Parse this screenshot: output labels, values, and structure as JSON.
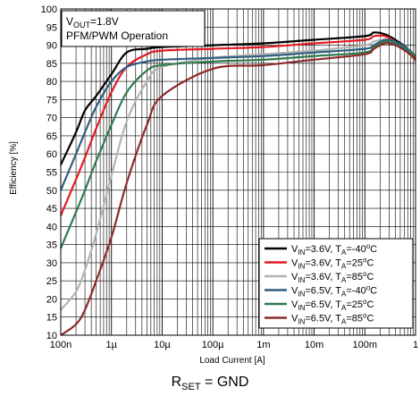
{
  "chart_data": {
    "type": "line",
    "xlabel": "Load Current [A]",
    "ylabel": "Efficiency [%]",
    "x_scale": "log",
    "xlim": [
      1e-07,
      1
    ],
    "ylim": [
      10,
      100
    ],
    "grid": true,
    "x_tick_labels": [
      "100n",
      "1µ",
      "10µ",
      "100µ",
      "1m",
      "10m",
      "100m",
      "1"
    ],
    "y_tick_labels": [
      "10",
      "15",
      "20",
      "25",
      "30",
      "35",
      "40",
      "45",
      "50",
      "55",
      "60",
      "65",
      "70",
      "75",
      "80",
      "85",
      "90",
      "95",
      "100"
    ],
    "annotation": {
      "line1_main": "V",
      "line1_sub": "OUT",
      "line1_rest": "=1.8V",
      "line2": "PFM/PWM Operation"
    },
    "caption": {
      "main": "R",
      "sub": "SET",
      "rest": " = GND"
    },
    "legend_position": "bottom-right",
    "series": [
      {
        "name": "VIN=3.6V, TA=-40°C",
        "legend": {
          "vin": "3.6V",
          "ta": "-40"
        },
        "color": "#000000",
        "x": [
          1e-07,
          2e-07,
          3e-07,
          5e-07,
          1e-06,
          2e-06,
          5e-06,
          1e-05,
          0.0001,
          0.001,
          0.01,
          0.1,
          0.15,
          0.25,
          0.4,
          0.7,
          1
        ],
        "y": [
          57,
          66,
          72,
          76,
          82,
          88,
          89,
          89.5,
          90,
          90.5,
          91.5,
          92.5,
          93.5,
          93,
          91.5,
          89,
          86
        ]
      },
      {
        "name": "VIN=3.6V, TA=25°C",
        "legend": {
          "vin": "3.6V",
          "ta": "25"
        },
        "color": "#e31b23",
        "x": [
          1e-07,
          2e-07,
          3e-07,
          5e-07,
          1e-06,
          2e-06,
          5e-06,
          1e-05,
          0.0001,
          0.001,
          0.01,
          0.1,
          0.15,
          0.25,
          0.4,
          0.7,
          1
        ],
        "y": [
          43,
          53,
          59,
          67,
          77,
          84,
          87.5,
          88.5,
          89,
          89.5,
          90.5,
          91.5,
          92.5,
          92.5,
          91,
          88.5,
          86
        ]
      },
      {
        "name": "VIN=3.6V, TA=85°C",
        "legend": {
          "vin": "3.6V",
          "ta": "85"
        },
        "color": "#b3b3b3",
        "x": [
          1e-07,
          2e-07,
          3e-07,
          5e-07,
          1e-06,
          2e-06,
          5e-06,
          1e-05,
          0.0001,
          0.001,
          0.01,
          0.1,
          0.15,
          0.25,
          0.4,
          0.7,
          1
        ],
        "y": [
          17,
          22,
          28,
          38,
          54,
          69,
          80,
          84,
          86.5,
          87.5,
          88.5,
          90,
          91,
          91.5,
          90.5,
          88,
          85.5
        ]
      },
      {
        "name": "VIN=6.5V, TA=-40°C",
        "legend": {
          "vin": "6.5V",
          "ta": "-40"
        },
        "color": "#2d5f7f",
        "x": [
          1e-07,
          2e-07,
          3e-07,
          5e-07,
          1e-06,
          2e-06,
          5e-06,
          1e-05,
          0.0001,
          0.001,
          0.01,
          0.1,
          0.15,
          0.25,
          0.4,
          0.7,
          1
        ],
        "y": [
          50,
          60,
          66,
          73,
          80,
          84,
          85.5,
          86,
          86.5,
          87,
          88,
          89,
          90,
          91.5,
          91,
          89,
          87
        ]
      },
      {
        "name": "VIN=6.5V, TA=25°C",
        "legend": {
          "vin": "6.5V",
          "ta": "25"
        },
        "color": "#2f7a4f",
        "x": [
          1e-07,
          2e-07,
          3e-07,
          5e-07,
          1e-06,
          2e-06,
          5e-06,
          1e-05,
          0.0001,
          0.001,
          0.01,
          0.1,
          0.15,
          0.25,
          0.4,
          0.7,
          1
        ],
        "y": [
          34,
          44,
          50,
          58,
          68,
          77,
          83,
          84.5,
          85.5,
          86,
          87,
          88,
          89.5,
          91,
          90.5,
          88.5,
          87
        ]
      },
      {
        "name": "VIN=6.5V, TA=85°C",
        "legend": {
          "vin": "6.5V",
          "ta": "85"
        },
        "color": "#8c2a2a",
        "x": [
          1e-07,
          2e-07,
          3e-07,
          5e-07,
          1e-06,
          2e-06,
          5e-06,
          1e-05,
          0.0001,
          0.001,
          0.01,
          0.1,
          0.15,
          0.25,
          0.4,
          0.7,
          1
        ],
        "y": [
          10,
          13,
          17,
          25,
          37,
          52,
          68,
          76,
          83.5,
          84.5,
          86,
          87.5,
          89,
          90.5,
          90,
          88,
          86
        ]
      }
    ]
  }
}
